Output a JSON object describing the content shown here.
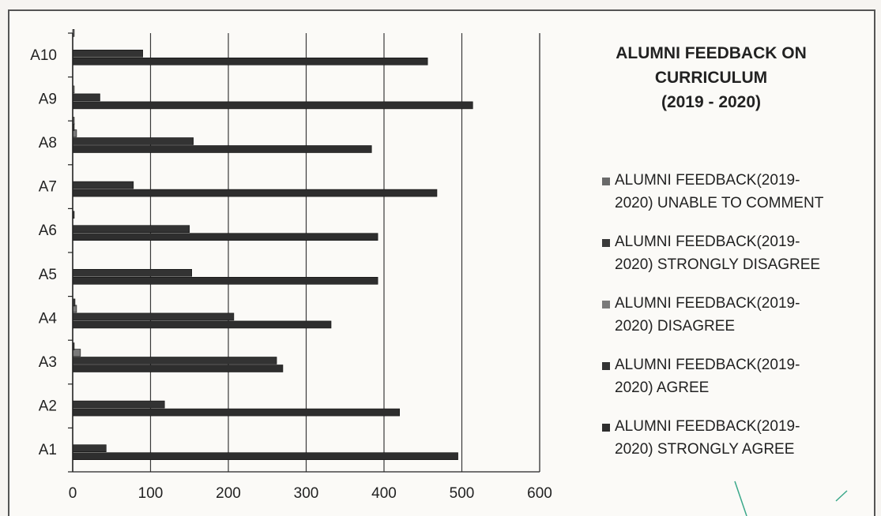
{
  "chart_data": {
    "type": "bar",
    "orientation": "horizontal",
    "title_lines": [
      "ALUMNI FEEDBACK ON",
      "CURRICULUM",
      "(2019 - 2020)"
    ],
    "categories": [
      "A1",
      "A2",
      "A3",
      "A4",
      "A5",
      "A6",
      "A7",
      "A8",
      "A9",
      "A10"
    ],
    "xticks": [
      "0",
      "100",
      "200",
      "300",
      "400",
      "500",
      "600"
    ],
    "xlim": [
      0,
      600
    ],
    "grid": true,
    "legend_position": "right",
    "series": [
      {
        "name": "ALUMNI FEEDBACK(2019-2020) STRONGLY AGREE",
        "legend_lines": [
          "ALUMNI FEEDBACK(2019-",
          "2020) STRONGLY AGREE"
        ],
        "color": "#2e2e2e",
        "values": [
          495,
          420,
          270,
          332,
          392,
          392,
          468,
          384,
          514,
          456
        ]
      },
      {
        "name": "ALUMNI FEEDBACK(2019-2020) AGREE",
        "legend_lines": [
          "ALUMNI FEEDBACK(2019-",
          "2020) AGREE"
        ],
        "color": "#333333",
        "values": [
          43,
          118,
          262,
          207,
          153,
          150,
          78,
          155,
          35,
          90
        ]
      },
      {
        "name": "ALUMNI FEEDBACK(2019-2020) DISAGREE",
        "legend_lines": [
          "ALUMNI FEEDBACK(2019-",
          "2020) DISAGREE"
        ],
        "color": "#7a7a7a",
        "values": [
          0,
          0,
          10,
          5,
          0,
          0,
          0,
          5,
          2,
          0
        ]
      },
      {
        "name": "ALUMNI FEEDBACK(2019-2020) STRONGLY DISAGREE",
        "legend_lines": [
          "ALUMNI FEEDBACK(2019-",
          "2020) STRONGLY DISAGREE"
        ],
        "color": "#3a3a3a",
        "values": [
          0,
          0,
          2,
          3,
          0,
          2,
          0,
          2,
          0,
          0
        ]
      },
      {
        "name": "ALUMNI FEEDBACK(2019-2020) UNABLE TO COMMENT",
        "legend_lines": [
          "ALUMNI FEEDBACK(2019-",
          "2020) UNABLE TO COMMENT"
        ],
        "color": "#6a6a6a",
        "values": [
          0,
          0,
          0,
          0,
          0,
          0,
          0,
          2,
          0,
          2
        ]
      }
    ]
  }
}
